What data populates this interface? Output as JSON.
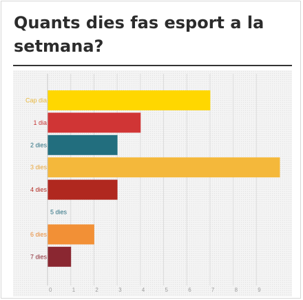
{
  "page": {
    "title": "Quants dies fas esport a la setmana?"
  },
  "chart_data": {
    "type": "bar",
    "orientation": "horizontal",
    "title": "",
    "xlabel": "",
    "ylabel": "",
    "categories": [
      "Cap dia",
      "1 dia",
      "2 dies",
      "3 dies",
      "4 dies",
      "5 dies",
      "6 dies",
      "7 dies"
    ],
    "values": [
      7,
      4,
      3,
      10,
      3,
      0,
      2,
      1
    ],
    "colors": [
      "#FFD700",
      "#D03535",
      "#226E7E",
      "#F4B83B",
      "#B0281F",
      "#226E7E",
      "#F29036",
      "#8A2731"
    ],
    "label_colors": [
      "#E8B73A",
      "#C53333",
      "#2A6F80",
      "#E8A53A",
      "#B0281F",
      "#2A6F80",
      "#E88A36",
      "#8A2731"
    ],
    "xlim": [
      0,
      10
    ],
    "xticks": [
      0,
      1,
      2,
      3,
      4,
      5,
      6,
      7,
      8,
      9
    ],
    "grid": true
  }
}
